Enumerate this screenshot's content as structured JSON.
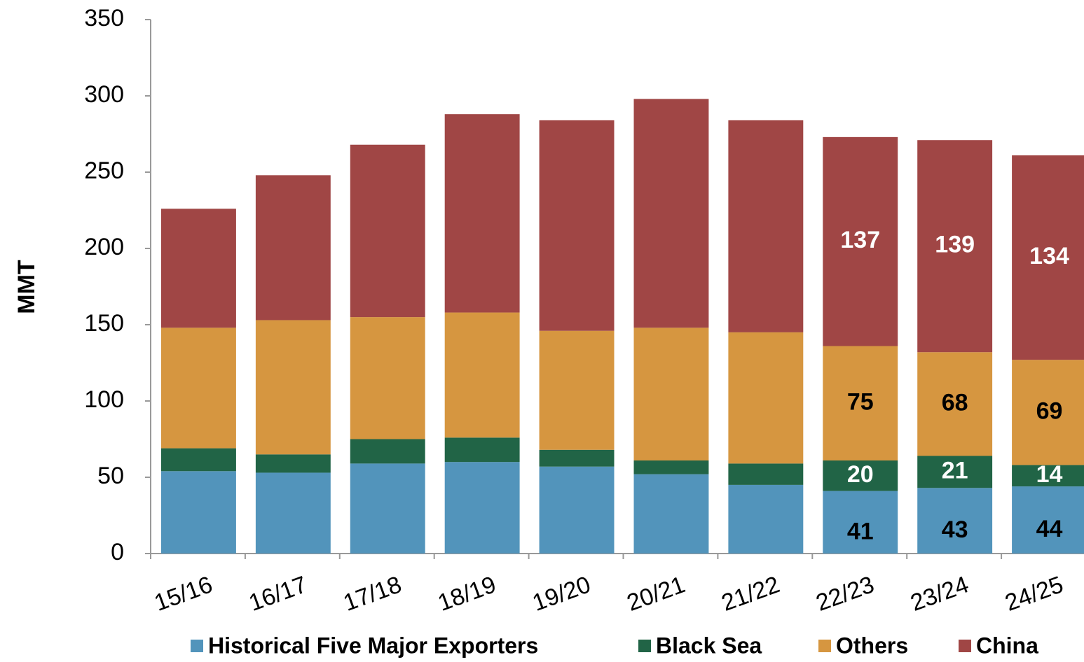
{
  "chart_data": {
    "type": "stacked_bar",
    "y_label": "MMT",
    "categories": [
      "15/16",
      "16/17",
      "17/18",
      "18/19",
      "19/20",
      "20/21",
      "21/22",
      "22/23",
      "23/24",
      "24/25"
    ],
    "series": [
      {
        "name": "Historical Five Major Exporters",
        "color": "#5294bb",
        "label_color": "#000000",
        "values": [
          54,
          53,
          59,
          60,
          57,
          52,
          45,
          41,
          43,
          44
        ],
        "value_labels": [
          null,
          null,
          null,
          null,
          null,
          null,
          null,
          "41",
          "43",
          "44"
        ]
      },
      {
        "name": "Black Sea",
        "color": "#216446",
        "label_color": "#ffffff",
        "values": [
          15,
          12,
          16,
          16,
          11,
          9,
          14,
          20,
          21,
          14
        ],
        "value_labels": [
          null,
          null,
          null,
          null,
          null,
          null,
          null,
          "20",
          "21",
          "14"
        ]
      },
      {
        "name": "Others",
        "color": "#d69640",
        "label_color": "#000000",
        "values": [
          79,
          88,
          80,
          82,
          78,
          87,
          86,
          75,
          68,
          69
        ],
        "value_labels": [
          null,
          null,
          null,
          null,
          null,
          null,
          null,
          "75",
          "68",
          "69"
        ]
      },
      {
        "name": "China",
        "color": "#a04645",
        "label_color": "#ffffff",
        "values": [
          78,
          95,
          113,
          130,
          138,
          150,
          139,
          137,
          139,
          134
        ],
        "value_labels": [
          null,
          null,
          null,
          null,
          null,
          null,
          null,
          "137",
          "139",
          "134"
        ]
      }
    ],
    "ylim": [
      0,
      350
    ],
    "yticks": [
      0,
      50,
      100,
      150,
      200,
      250,
      300,
      350
    ],
    "grid": false
  }
}
